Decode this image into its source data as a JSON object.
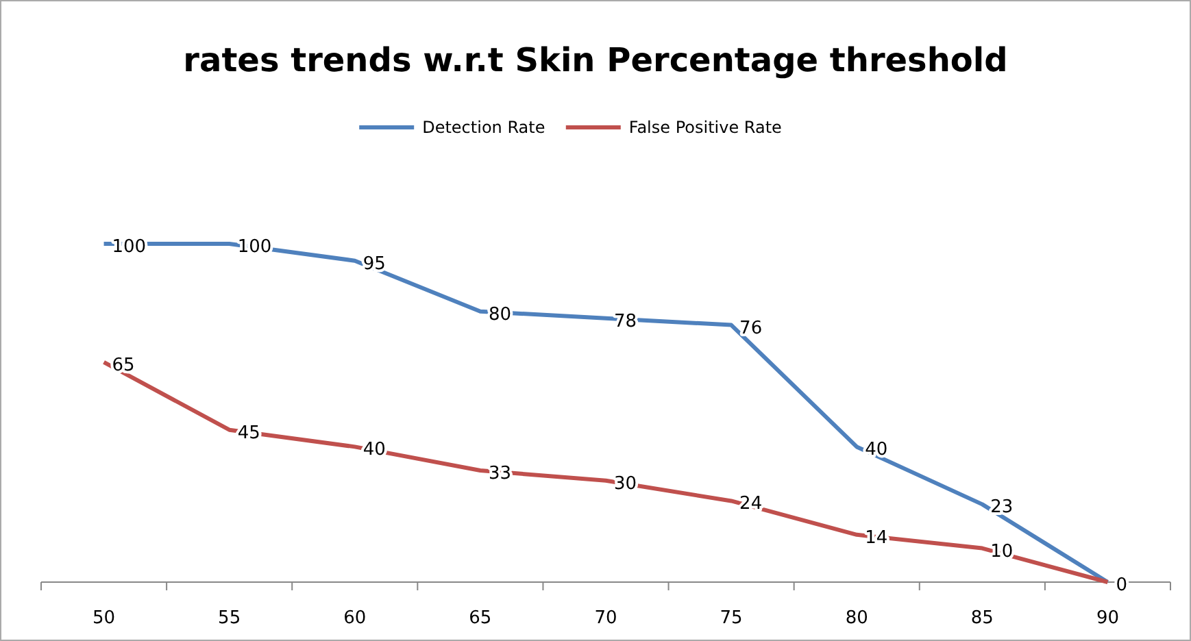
{
  "chart_data": {
    "type": "line",
    "title": "rates trends w.r.t Skin Percentage threshold",
    "categories": [
      "50",
      "55",
      "60",
      "65",
      "70",
      "75",
      "80",
      "85",
      "90"
    ],
    "legend": "top",
    "marker": "none",
    "series": [
      {
        "name": "Detection Rate",
        "color": "#4f81bd",
        "values": [
          100,
          100,
          95,
          80,
          78,
          76,
          40,
          23,
          0
        ],
        "value_labels": [
          "100",
          "100",
          "95",
          "80",
          "78",
          "76",
          "40",
          "23",
          "0"
        ]
      },
      {
        "name": "False Positive  Rate",
        "color": "#c0504d",
        "values": [
          65,
          45,
          40,
          33,
          30,
          24,
          14,
          10,
          0
        ],
        "value_labels": [
          "65",
          "45",
          "40",
          "33",
          "30",
          "24",
          "14",
          "10",
          null
        ]
      }
    ]
  }
}
